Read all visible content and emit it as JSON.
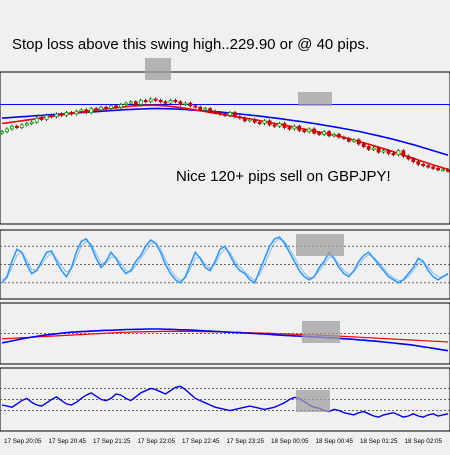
{
  "annotations": {
    "top": "Stop loss above this swing high..229.90 or @ 40 pips.",
    "middle": "Nice 120+ pips sell on GBPJPY!"
  },
  "colors": {
    "background": "#f0f0f0",
    "pane_border": "#000000",
    "grid": "#666666",
    "candle_up": "#00aa00",
    "candle_down": "#cc0000",
    "ma_red": "#ff0000",
    "ma_blue": "#0000ff",
    "level_line": "#0000ff",
    "stoch_main": "#3399ff",
    "stoch_signal": "#3399ff",
    "rsi": "#0000ee",
    "highlight": "#a0a0a0"
  },
  "time_axis": {
    "labels": [
      "17 Sep 20:05",
      "17 Sep 20:45",
      "17 Sep 21:25",
      "17 Sep 22:05",
      "17 Sep 22:45",
      "17 Sep 23:25",
      "18 Sep 00:05",
      "18 Sep 00:45",
      "18 Sep 01:25",
      "18 Sep 02:05"
    ]
  },
  "chart_data": [
    {
      "type": "candlestick",
      "pane": "price",
      "legend": "none",
      "ylim": [
        0,
        100
      ],
      "close": [
        62,
        64,
        66,
        65,
        67,
        68,
        69,
        72,
        71,
        74,
        73,
        75,
        74,
        76,
        75,
        77,
        78,
        76,
        79,
        78,
        80,
        79,
        81,
        80,
        82,
        83,
        84,
        82,
        85,
        84,
        86,
        85,
        84,
        83,
        85,
        84,
        82,
        83,
        81,
        80,
        78,
        79,
        77,
        76,
        75,
        74,
        76,
        73,
        72,
        70,
        71,
        69,
        68,
        70,
        67,
        66,
        68,
        65,
        64,
        66,
        63,
        62,
        64,
        61,
        60,
        62,
        59,
        60,
        58,
        57,
        55,
        56,
        53,
        51,
        49,
        50,
        47,
        48,
        46,
        45,
        48,
        44,
        42,
        40,
        38,
        37,
        36,
        35,
        34,
        34,
        33
      ],
      "series": [
        {
          "name": "",
          "values": [
            72,
            72.2,
            72.5,
            72.7,
            73,
            73.2,
            73.5,
            73.8,
            74,
            74.3,
            74.5,
            74.8,
            75,
            75.2,
            75.5,
            75.7,
            76,
            76.3,
            76.5,
            76.7,
            77,
            77.2,
            77.5,
            77.7,
            78,
            78.2,
            78.4,
            78.5,
            78.7,
            78.8,
            79,
            79,
            79,
            78.9,
            78.8,
            78.7,
            78.5,
            78.3,
            78,
            77.8,
            77.5,
            77.2,
            77,
            76.7,
            76.4,
            76,
            75.7,
            75.3,
            75,
            74.6,
            74.2,
            73.8,
            73.4,
            73,
            72.5,
            72.1,
            71.6,
            71.1,
            70.6,
            70.1,
            69.6,
            69.1,
            68.5,
            68,
            67.4,
            66.8,
            66.2,
            65.6,
            64.9,
            64.3,
            63.6,
            62.9,
            62.2,
            61.4,
            60.6,
            59.8,
            59,
            58.1,
            57.2,
            56.3,
            55.4,
            54.4,
            53.4,
            52.4,
            51.4,
            50.3,
            49.2,
            48.1,
            47,
            45.9,
            44.8
          ]
        },
        {
          "name": "",
          "values": [
            68,
            68.5,
            69,
            69.5,
            70,
            70.5,
            71,
            71.6,
            72.2,
            72.8,
            73.4,
            74,
            74.5,
            75,
            75.5,
            76,
            76.5,
            77,
            77.5,
            78,
            78.4,
            78.8,
            79.2,
            79.6,
            80,
            80.4,
            80.8,
            81,
            81.2,
            81.4,
            81.5,
            81.4,
            81.2,
            81,
            80.6,
            80.2,
            79.7,
            79.2,
            78.6,
            78,
            77.4,
            76.8,
            76.2,
            75.6,
            75,
            74.4,
            73.8,
            73.2,
            72.6,
            72,
            71.4,
            70.8,
            70.2,
            69.5,
            68.8,
            68.1,
            67.4,
            66.7,
            66,
            65.3,
            64.6,
            63.9,
            63.2,
            62.5,
            61.8,
            61,
            60.2,
            59.4,
            58.6,
            57.7,
            56.8,
            55.8,
            54.8,
            53.8,
            52.8,
            51.7,
            50.6,
            49.5,
            48.4,
            47.2,
            46,
            44.8,
            43.6,
            42.4,
            41.2,
            40,
            38.8,
            37.6,
            36.5,
            35.4,
            34.3
          ]
        }
      ],
      "level": 82
    },
    {
      "type": "line",
      "pane": "stochastic",
      "legend": "none",
      "ylim": [
        0,
        100
      ],
      "series": [
        {
          "name": "",
          "values": [
            20,
            30,
            55,
            75,
            70,
            50,
            35,
            40,
            55,
            70,
            72,
            55,
            40,
            30,
            45,
            70,
            88,
            92,
            80,
            60,
            45,
            55,
            70,
            60,
            45,
            35,
            40,
            55,
            65,
            80,
            90,
            85,
            70,
            50,
            35,
            25,
            20,
            30,
            50,
            70,
            60,
            45,
            40,
            55,
            75,
            80,
            65,
            50,
            40,
            35,
            25,
            20,
            40,
            60,
            80,
            92,
            95,
            85,
            70,
            55,
            40,
            30,
            25,
            30,
            45,
            55,
            70,
            60,
            45,
            35,
            30,
            40,
            55,
            65,
            70,
            60,
            50,
            40,
            30,
            25,
            20,
            25,
            35,
            45,
            60,
            55,
            40,
            30,
            25,
            30,
            35
          ]
        },
        {
          "name": "",
          "values": [
            25,
            28,
            45,
            65,
            70,
            58,
            42,
            40,
            50,
            62,
            68,
            60,
            48,
            38,
            42,
            60,
            80,
            88,
            84,
            68,
            52,
            52,
            62,
            62,
            52,
            40,
            38,
            48,
            60,
            72,
            84,
            86,
            76,
            58,
            42,
            30,
            24,
            28,
            42,
            60,
            62,
            50,
            44,
            50,
            66,
            76,
            70,
            56,
            46,
            38,
            30,
            24,
            34,
            50,
            70,
            86,
            92,
            88,
            76,
            62,
            48,
            36,
            28,
            30,
            40,
            50,
            62,
            62,
            50,
            40,
            34,
            38,
            48,
            60,
            66,
            62,
            54,
            44,
            34,
            28,
            24,
            24,
            30,
            40,
            52,
            54,
            46,
            36,
            30,
            30,
            33
          ]
        }
      ],
      "levels": [
        80,
        50,
        20
      ]
    },
    {
      "type": "line",
      "pane": "oscillator",
      "legend": "none",
      "ylim": [
        -1,
        1
      ],
      "series": [
        {
          "name": "",
          "values": [
            -0.35,
            -0.32,
            -0.28,
            -0.24,
            -0.2,
            -0.17,
            -0.14,
            -0.11,
            -0.08,
            -0.05,
            -0.03,
            -0.01,
            0.01,
            0.03,
            0.05,
            0.06,
            0.07,
            0.08,
            0.09,
            0.1,
            0.11,
            0.12,
            0.12,
            0.13,
            0.14,
            0.15,
            0.15,
            0.16,
            0.16,
            0.17,
            0.17,
            0.17,
            0.17,
            0.16,
            0.16,
            0.15,
            0.14,
            0.14,
            0.13,
            0.12,
            0.11,
            0.1,
            0.09,
            0.08,
            0.07,
            0.06,
            0.05,
            0.04,
            0.03,
            0.02,
            0.01,
            0,
            -0.01,
            -0.02,
            -0.03,
            -0.05,
            -0.06,
            -0.07,
            -0.08,
            -0.09,
            -0.1,
            -0.11,
            -0.12,
            -0.13,
            -0.14,
            -0.15,
            -0.16,
            -0.17,
            -0.18,
            -0.2,
            -0.21,
            -0.22,
            -0.24,
            -0.25,
            -0.27,
            -0.28,
            -0.3,
            -0.32,
            -0.34,
            -0.36,
            -0.38,
            -0.4,
            -0.42,
            -0.44,
            -0.47,
            -0.5,
            -0.53,
            -0.56,
            -0.59,
            -0.62,
            -0.65
          ]
        },
        {
          "name": "",
          "values": [
            -0.2,
            -0.19,
            -0.18,
            -0.17,
            -0.16,
            -0.15,
            -0.14,
            -0.13,
            -0.12,
            -0.11,
            -0.1,
            -0.09,
            -0.08,
            -0.07,
            -0.06,
            -0.05,
            -0.04,
            -0.03,
            -0.02,
            -0.01,
            0,
            0.01,
            0.02,
            0.03,
            0.04,
            0.05,
            0.05,
            0.06,
            0.06,
            0.07,
            0.07,
            0.07,
            0.08,
            0.08,
            0.08,
            0.08,
            0.08,
            0.08,
            0.08,
            0.08,
            0.07,
            0.07,
            0.07,
            0.06,
            0.06,
            0.05,
            0.05,
            0.04,
            0.04,
            0.03,
            0.03,
            0.02,
            0.02,
            0.01,
            0.01,
            0,
            -0.01,
            -0.01,
            -0.02,
            -0.03,
            -0.03,
            -0.04,
            -0.05,
            -0.05,
            -0.06,
            -0.07,
            -0.08,
            -0.09,
            -0.1,
            -0.11,
            -0.12,
            -0.13,
            -0.14,
            -0.15,
            -0.16,
            -0.17,
            -0.18,
            -0.19,
            -0.2,
            -0.21,
            -0.22,
            -0.23,
            -0.24,
            -0.25,
            -0.26,
            -0.27,
            -0.28,
            -0.29,
            -0.3,
            -0.31,
            -0.32
          ]
        }
      ],
      "levels": [
        0
      ]
    },
    {
      "type": "line",
      "pane": "rsi",
      "legend": "none",
      "ylim": [
        0,
        100
      ],
      "series": [
        {
          "name": "",
          "values": [
            40,
            38,
            36,
            42,
            48,
            52,
            45,
            40,
            38,
            44,
            50,
            55,
            48,
            42,
            40,
            45,
            52,
            58,
            62,
            56,
            50,
            48,
            52,
            60,
            58,
            52,
            48,
            55,
            62,
            66,
            70,
            68,
            64,
            60,
            66,
            72,
            74,
            68,
            60,
            52,
            48,
            44,
            40,
            36,
            34,
            32,
            30,
            32,
            34,
            36,
            38,
            36,
            34,
            32,
            34,
            36,
            40,
            44,
            50,
            54,
            52,
            46,
            40,
            36,
            34,
            30,
            28,
            32,
            30,
            26,
            24,
            22,
            26,
            28,
            24,
            20,
            18,
            22,
            24,
            26,
            22,
            18,
            20,
            24,
            20,
            18,
            22,
            24,
            20,
            22,
            24
          ]
        }
      ],
      "levels": [
        70,
        50,
        30
      ]
    }
  ]
}
